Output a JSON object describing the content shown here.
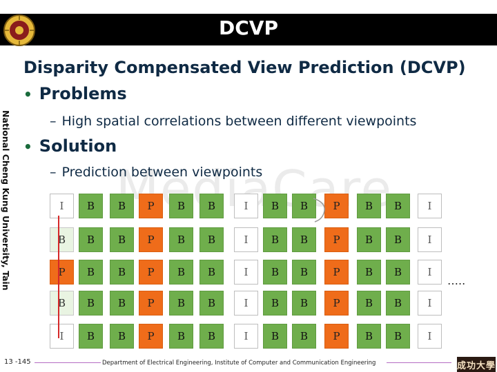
{
  "header": {
    "title": "DCVP"
  },
  "side_label": "National Cheng Kung University, Tainan, Taiwan",
  "watermark": "MediaCare",
  "slide": {
    "heading": "Disparity Compensated View Prediction (DCVP)",
    "bullets": [
      {
        "label": "Problems",
        "sub": "High spatial correlations between different viewpoints"
      },
      {
        "label": "Solution",
        "sub": "Prediction between viewpoints"
      }
    ]
  },
  "frame_grid": {
    "rows": [
      [
        "I",
        "B",
        "B",
        "P",
        "B",
        "B",
        "I",
        "B",
        "B",
        "P",
        "B",
        "B",
        "I"
      ],
      [
        "B",
        "B",
        "B",
        "P",
        "B",
        "B",
        "I",
        "B",
        "B",
        "P",
        "B",
        "B",
        "I"
      ],
      [
        "P",
        "B",
        "B",
        "P",
        "B",
        "B",
        "I",
        "B",
        "B",
        "P",
        "B",
        "B",
        "I"
      ],
      [
        "B",
        "B",
        "B",
        "P",
        "B",
        "B",
        "I",
        "B",
        "B",
        "P",
        "B",
        "B",
        "I"
      ],
      [
        "I",
        "B",
        "B",
        "P",
        "B",
        "B",
        "I",
        "B",
        "B",
        "P",
        "B",
        "B",
        "I"
      ]
    ],
    "continuation": "….."
  },
  "colors": {
    "light_cell": "#e9f4e2",
    "dark_cell": "#6fae4c",
    "orange_cell": "#ef6c1a",
    "arrow": "#d62828",
    "text": "#0f2a44"
  },
  "footer": {
    "page_number": "13 -145",
    "department": "Department of Electrical Engineering, Institute of Computer and Communication Engineering",
    "seal_text": "成功大學"
  }
}
